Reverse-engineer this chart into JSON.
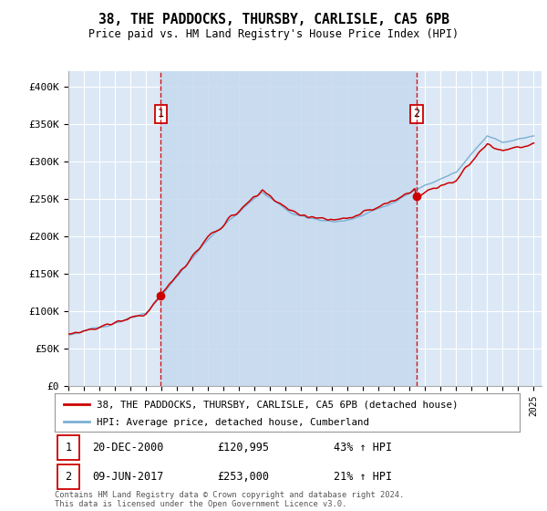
{
  "title": "38, THE PADDOCKS, THURSBY, CARLISLE, CA5 6PB",
  "subtitle": "Price paid vs. HM Land Registry's House Price Index (HPI)",
  "sale1_date": "20-DEC-2000",
  "sale1_price": 120995,
  "sale1_label": "43% ↑ HPI",
  "sale1_marker_year": 2000.96,
  "sale2_date": "09-JUN-2017",
  "sale2_price": 253000,
  "sale2_label": "21% ↑ HPI",
  "sale2_marker_year": 2017.44,
  "legend_label1": "38, THE PADDOCKS, THURSBY, CARLISLE, CA5 6PB (detached house)",
  "legend_label2": "HPI: Average price, detached house, Cumberland",
  "footer": "Contains HM Land Registry data © Crown copyright and database right 2024.\nThis data is licensed under the Open Government Licence v3.0.",
  "hpi_color": "#7bafd4",
  "price_color": "#cc0000",
  "plot_bg": "#dce8f5",
  "shade_color": "#c5d9ee",
  "y_min": 0,
  "y_max": 420000,
  "y_ticks": [
    0,
    50000,
    100000,
    150000,
    200000,
    250000,
    300000,
    350000,
    400000
  ],
  "x_min": 1995,
  "x_max": 2025.5
}
